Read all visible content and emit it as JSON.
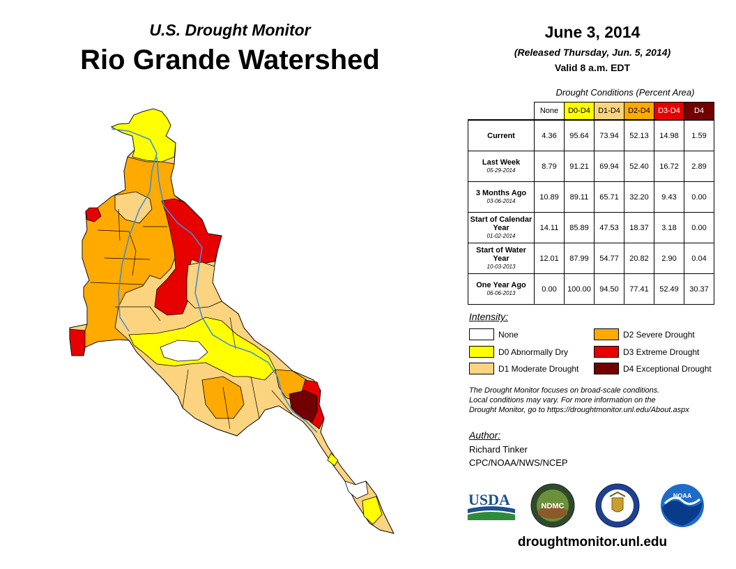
{
  "header": {
    "monitor_title": "U.S. Drought Monitor",
    "watershed_title": "Rio Grande Watershed",
    "map_date": "June 3, 2014",
    "released": "(Released Thursday, Jun. 5, 2014)",
    "valid": "Valid 8 a.m. EDT"
  },
  "table": {
    "caption": "Drought Conditions (Percent Area)",
    "columns": [
      {
        "label": "None",
        "color": "#ffffff"
      },
      {
        "label": "D0-D4",
        "color": "#ffff00"
      },
      {
        "label": "D1-D4",
        "color": "#fcd37f"
      },
      {
        "label": "D2-D4",
        "color": "#ffaa00"
      },
      {
        "label": "D3-D4",
        "color": "#e60000"
      },
      {
        "label": "D4",
        "color": "#730000"
      }
    ],
    "rows": [
      {
        "label": "Current",
        "date": "",
        "values": [
          "4.36",
          "95.64",
          "73.94",
          "52.13",
          "14.98",
          "1.59"
        ]
      },
      {
        "label": "Last Week",
        "date": "05-29-2014",
        "values": [
          "8.79",
          "91.21",
          "69.94",
          "52.40",
          "16.72",
          "2.89"
        ]
      },
      {
        "label": "3 Months Ago",
        "date": "03-06-2014",
        "values": [
          "10.89",
          "89.11",
          "65.71",
          "32.20",
          "9.43",
          "0.00"
        ]
      },
      {
        "label": "Start of Calendar Year",
        "date": "01-02-2014",
        "values": [
          "14.11",
          "85.89",
          "47.53",
          "18.37",
          "3.18",
          "0.00"
        ]
      },
      {
        "label": "Start of Water Year",
        "date": "10-03-2013",
        "values": [
          "12.01",
          "87.99",
          "54.77",
          "20.82",
          "2.90",
          "0.04"
        ]
      },
      {
        "label": "One Year Ago",
        "date": "06-06-2013",
        "values": [
          "0.00",
          "100.00",
          "94.50",
          "77.41",
          "52.49",
          "30.37"
        ]
      }
    ]
  },
  "legend": {
    "title": "Intensity:",
    "items": [
      {
        "label": "None",
        "color": "#ffffff"
      },
      {
        "label": "D0 Abnormally Dry",
        "color": "#ffff00"
      },
      {
        "label": "D1 Moderate Drought",
        "color": "#fcd37f"
      },
      {
        "label": "D2 Severe Drought",
        "color": "#ffaa00"
      },
      {
        "label": "D3 Extreme Drought",
        "color": "#e60000"
      },
      {
        "label": "D4 Exceptional Drought",
        "color": "#730000"
      }
    ]
  },
  "note": {
    "line1": "The Drought Monitor focuses on broad-scale conditions.",
    "line2": "Local conditions may vary. For more information on the",
    "line3": "Drought Monitor, go to https://droughtmonitor.unl.edu/About.aspx"
  },
  "author": {
    "title": "Author:",
    "name": "Richard Tinker",
    "org": "CPC/NOAA/NWS/NCEP"
  },
  "logos": {
    "usda": "USDA",
    "ndmc": "NDMC",
    "noaa": "NOAA",
    "usda_color": "#1b4f8f",
    "noaa_color": "#1e6cc8"
  },
  "footer": {
    "website": "droughtmonitor.unl.edu"
  },
  "map": {
    "color_d0": "#ffff00",
    "color_d1": "#fcd37f",
    "color_d2": "#ffaa00",
    "color_d3": "#e60000",
    "color_d4": "#730000",
    "river_color": "#3f8fd8"
  }
}
